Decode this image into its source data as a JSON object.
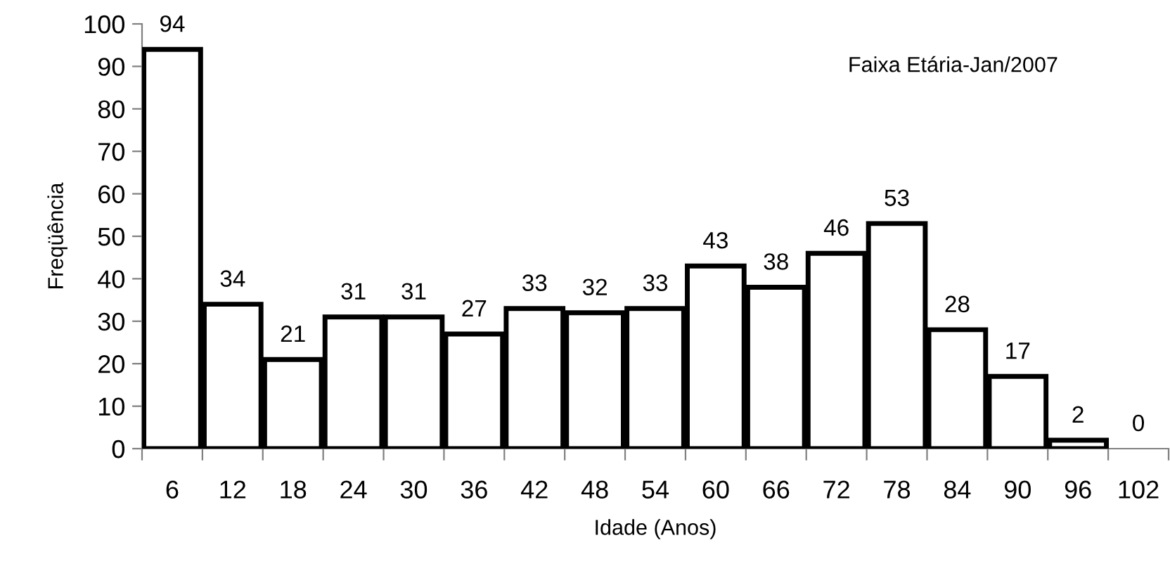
{
  "chart_data": {
    "type": "bar",
    "xlabel": "Idade (Anos)",
    "ylabel": "Freqüência",
    "annotations": [
      "Faixa Etária-Jan/2007"
    ],
    "categories": [
      "6",
      "12",
      "18",
      "24",
      "30",
      "36",
      "42",
      "48",
      "54",
      "60",
      "66",
      "72",
      "78",
      "84",
      "90",
      "96",
      "102"
    ],
    "values": [
      94,
      34,
      21,
      31,
      31,
      27,
      33,
      32,
      33,
      43,
      38,
      46,
      53,
      28,
      17,
      2,
      0
    ],
    "color": "#ffffff",
    "ylim": [
      0,
      100
    ],
    "yticks": [
      0,
      10,
      20,
      30,
      40,
      50,
      60,
      70,
      80,
      90,
      100
    ],
    "grid": false,
    "data_labels": true
  }
}
